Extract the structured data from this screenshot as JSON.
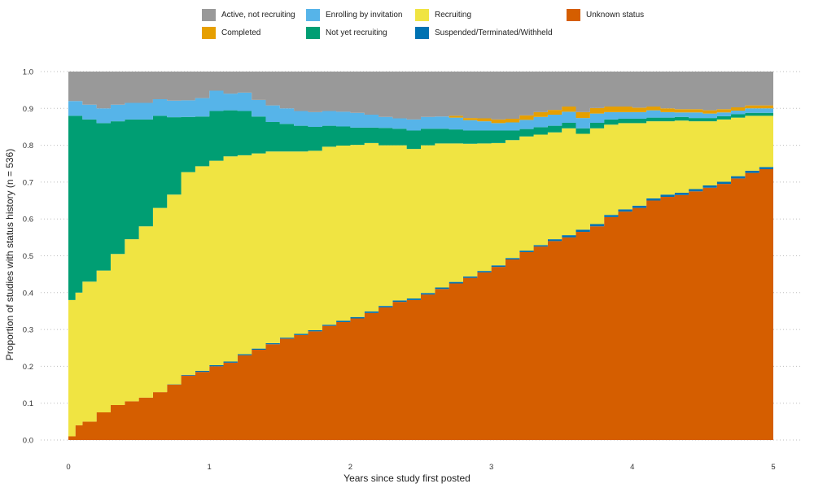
{
  "chart_data": {
    "type": "area",
    "stacked": true,
    "xlabel": "Years since study first posted",
    "ylabel": "Proportion of studies with status history (n = 536)",
    "xlim": [
      0,
      5
    ],
    "ylim": [
      0,
      1
    ],
    "x_ticks": [
      "0",
      "1",
      "2",
      "3",
      "4",
      "5"
    ],
    "y_ticks": [
      "0.0",
      "0.1",
      "0.2",
      "0.3",
      "0.4",
      "0.5",
      "0.6",
      "0.7",
      "0.8",
      "0.9",
      "1.0"
    ],
    "grid": "horizontal dotted",
    "legend_position": "top",
    "x": [
      0,
      0.05,
      0.1,
      0.2,
      0.3,
      0.4,
      0.5,
      0.6,
      0.7,
      0.8,
      0.9,
      1.0,
      1.1,
      1.2,
      1.3,
      1.4,
      1.5,
      1.6,
      1.7,
      1.8,
      1.9,
      2.0,
      2.1,
      2.2,
      2.3,
      2.4,
      2.5,
      2.6,
      2.7,
      2.8,
      2.9,
      3.0,
      3.1,
      3.2,
      3.3,
      3.4,
      3.5,
      3.6,
      3.7,
      3.8,
      3.9,
      4.0,
      4.1,
      4.2,
      4.3,
      4.4,
      4.5,
      4.6,
      4.7,
      4.8,
      4.9,
      5.0
    ],
    "series": [
      {
        "name": "Unknown status",
        "color": "#D55E00",
        "values": [
          0.01,
          0.04,
          0.05,
          0.075,
          0.095,
          0.105,
          0.115,
          0.13,
          0.15,
          0.175,
          0.185,
          0.2,
          0.21,
          0.23,
          0.245,
          0.26,
          0.275,
          0.285,
          0.295,
          0.31,
          0.32,
          0.33,
          0.345,
          0.36,
          0.375,
          0.38,
          0.395,
          0.41,
          0.425,
          0.44,
          0.455,
          0.47,
          0.49,
          0.51,
          0.525,
          0.54,
          0.55,
          0.565,
          0.58,
          0.605,
          0.62,
          0.63,
          0.65,
          0.66,
          0.665,
          0.675,
          0.685,
          0.695,
          0.71,
          0.725,
          0.735,
          0.745
        ]
      },
      {
        "name": "Suspended/Terminated/Withheld",
        "color": "#0072B2",
        "values": [
          0,
          0,
          0,
          0,
          0,
          0,
          0,
          0,
          0.001,
          0.002,
          0.003,
          0.003,
          0.003,
          0.003,
          0.003,
          0.003,
          0.003,
          0.003,
          0.003,
          0.003,
          0.004,
          0.004,
          0.004,
          0.004,
          0.004,
          0.004,
          0.004,
          0.004,
          0.004,
          0.004,
          0.004,
          0.004,
          0.004,
          0.004,
          0.004,
          0.005,
          0.006,
          0.006,
          0.006,
          0.006,
          0.006,
          0.006,
          0.006,
          0.006,
          0.006,
          0.006,
          0.006,
          0.006,
          0.006,
          0.006,
          0.006,
          0.006
        ]
      },
      {
        "name": "Recruiting",
        "color": "#F0E442",
        "values": [
          0.37,
          0.36,
          0.38,
          0.385,
          0.41,
          0.44,
          0.465,
          0.5,
          0.515,
          0.55,
          0.555,
          0.555,
          0.557,
          0.54,
          0.53,
          0.52,
          0.505,
          0.495,
          0.487,
          0.483,
          0.475,
          0.467,
          0.457,
          0.436,
          0.421,
          0.406,
          0.401,
          0.391,
          0.376,
          0.36,
          0.346,
          0.332,
          0.32,
          0.31,
          0.3,
          0.29,
          0.29,
          0.26,
          0.26,
          0.245,
          0.234,
          0.224,
          0.209,
          0.199,
          0.196,
          0.184,
          0.174,
          0.169,
          0.159,
          0.149,
          0.139,
          0.129
        ]
      },
      {
        "name": "Not yet recruiting",
        "color": "#009E73",
        "values": [
          0.5,
          0.48,
          0.44,
          0.4,
          0.36,
          0.325,
          0.29,
          0.25,
          0.21,
          0.15,
          0.135,
          0.135,
          0.125,
          0.12,
          0.1,
          0.08,
          0.075,
          0.07,
          0.065,
          0.057,
          0.052,
          0.047,
          0.042,
          0.047,
          0.045,
          0.05,
          0.045,
          0.04,
          0.038,
          0.036,
          0.035,
          0.034,
          0.026,
          0.02,
          0.02,
          0.018,
          0.015,
          0.015,
          0.015,
          0.014,
          0.012,
          0.012,
          0.01,
          0.01,
          0.01,
          0.009,
          0.009,
          0.009,
          0.009,
          0.008,
          0.008,
          0.008
        ]
      },
      {
        "name": "Enrolling by invitation",
        "color": "#56B4E9",
        "values": [
          0.04,
          0.04,
          0.04,
          0.04,
          0.045,
          0.045,
          0.045,
          0.045,
          0.045,
          0.045,
          0.05,
          0.055,
          0.045,
          0.05,
          0.045,
          0.045,
          0.042,
          0.04,
          0.04,
          0.04,
          0.04,
          0.04,
          0.035,
          0.03,
          0.028,
          0.03,
          0.032,
          0.033,
          0.032,
          0.028,
          0.025,
          0.02,
          0.022,
          0.025,
          0.028,
          0.03,
          0.03,
          0.028,
          0.025,
          0.02,
          0.018,
          0.018,
          0.02,
          0.015,
          0.012,
          0.015,
          0.012,
          0.01,
          0.01,
          0.012,
          0.012,
          0.012
        ]
      },
      {
        "name": "Completed",
        "color": "#E69F00",
        "values": [
          0,
          0,
          0,
          0,
          0,
          0,
          0,
          0,
          0,
          0,
          0,
          0,
          0,
          0,
          0,
          0,
          0,
          0,
          0,
          0,
          0,
          0,
          0,
          0,
          0,
          0,
          0,
          0,
          0.005,
          0.006,
          0.008,
          0.01,
          0.01,
          0.012,
          0.013,
          0.013,
          0.014,
          0.016,
          0.015,
          0.015,
          0.015,
          0.012,
          0.01,
          0.01,
          0.009,
          0.009,
          0.009,
          0.009,
          0.009,
          0.008,
          0.008,
          0.008
        ]
      },
      {
        "name": "Active, not recruiting",
        "color": "#999999",
        "values": [
          0.08,
          0.08,
          0.09,
          0.1,
          0.09,
          0.085,
          0.085,
          0.075,
          0.079,
          0.078,
          0.072,
          0.052,
          0.06,
          0.057,
          0.077,
          0.092,
          0.1,
          0.107,
          0.11,
          0.107,
          0.109,
          0.112,
          0.117,
          0.123,
          0.127,
          0.13,
          0.123,
          0.122,
          0.12,
          0.126,
          0.127,
          0.13,
          0.128,
          0.119,
          0.11,
          0.104,
          0.095,
          0.11,
          0.099,
          0.095,
          0.095,
          0.098,
          0.105,
          0.1,
          0.102,
          0.112,
          0.105,
          0.102,
          0.097,
          0.092,
          0.092,
          0.092
        ]
      }
    ]
  },
  "legend": {
    "items": [
      {
        "label": "Active, not recruiting",
        "color": "#999999"
      },
      {
        "label": "Completed",
        "color": "#E69F00"
      },
      {
        "label": "Enrolling by invitation",
        "color": "#56B4E9"
      },
      {
        "label": "Not yet recruiting",
        "color": "#009E73"
      },
      {
        "label": "Recruiting",
        "color": "#F0E442"
      },
      {
        "label": "Suspended/Terminated/Withheld",
        "color": "#0072B2"
      },
      {
        "label": "Unknown status",
        "color": "#D55E00"
      }
    ]
  }
}
